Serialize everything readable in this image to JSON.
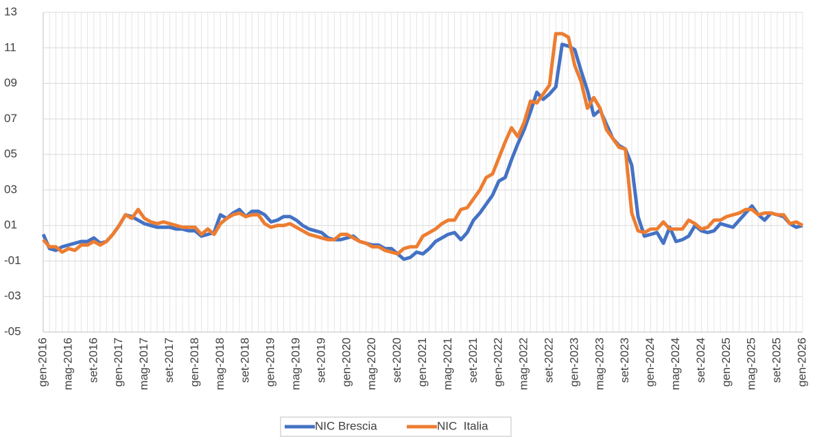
{
  "chart_data": {
    "type": "line",
    "categories": [
      "gen-2016",
      null,
      null,
      null,
      "mag-2016",
      null,
      null,
      null,
      "set-2016",
      null,
      null,
      null,
      "gen-2017",
      null,
      null,
      null,
      "mag-2017",
      null,
      null,
      null,
      "set-2017",
      null,
      null,
      null,
      "gen-2018",
      null,
      null,
      null,
      "mag-2018",
      null,
      null,
      null,
      "set-2018",
      null,
      null,
      null,
      "gen-2019",
      null,
      null,
      null,
      "mag-2019",
      null,
      null,
      null,
      "set-2019",
      null,
      null,
      null,
      "gen-2020",
      null,
      null,
      null,
      "mag-2020",
      null,
      null,
      null,
      "set-2020",
      null,
      null,
      null,
      "gen-2021",
      null,
      null,
      null,
      "mag-2021",
      null,
      null,
      null,
      "set-2021",
      null,
      null,
      null,
      "gen-2022",
      null,
      null,
      null,
      "mag-2022",
      null,
      null,
      null,
      "set-2022",
      null,
      null,
      null,
      "gen-2023",
      null,
      null,
      null,
      "mag-2023",
      null,
      null,
      null,
      "set-2023",
      null,
      null,
      null,
      "gen-2024",
      null,
      null,
      null,
      "mag-2024",
      null,
      null,
      null,
      "set-2024",
      null,
      null,
      null,
      "gen-2025",
      null,
      null,
      null,
      "mag-2025",
      null,
      null,
      null,
      "set-2025",
      null,
      null,
      null,
      "gen-2026"
    ],
    "series": [
      {
        "name": "NIC Brescia",
        "color": "#4472c4",
        "values": [
          0.5,
          -0.3,
          -0.4,
          -0.2,
          -0.1,
          0,
          0.1,
          0.1,
          0.3,
          0,
          0.1,
          0.5,
          1.0,
          1.6,
          1.5,
          1.3,
          1.1,
          1.0,
          0.9,
          0.9,
          0.9,
          0.8,
          0.8,
          0.7,
          0.7,
          0.4,
          0.5,
          0.6,
          1.6,
          1.4,
          1.7,
          1.9,
          1.5,
          1.8,
          1.8,
          1.6,
          1.2,
          1.3,
          1.5,
          1.5,
          1.3,
          1.0,
          0.8,
          0.7,
          0.6,
          0.3,
          0.2,
          0.2,
          0.3,
          0.4,
          0.1,
          0.0,
          -0.1,
          -0.1,
          -0.3,
          -0.3,
          -0.6,
          -0.9,
          -0.8,
          -0.5,
          -0.6,
          -0.3,
          0.1,
          0.3,
          0.5,
          0.6,
          0.2,
          0.6,
          1.3,
          1.7,
          2.2,
          2.7,
          3.5,
          3.7,
          4.7,
          5.6,
          6.4,
          7.4,
          8.5,
          8.1,
          8.4,
          8.8,
          11.2,
          11.1,
          10.9,
          9.7,
          8.6,
          7.2,
          7.5,
          6.7,
          5.9,
          5.5,
          5.3,
          4.4,
          1.5,
          0.4,
          0.5,
          0.6,
          0.0,
          0.9,
          0.1,
          0.2,
          0.4,
          1.0,
          0.7,
          0.6,
          0.7,
          1.1,
          1.0,
          0.9,
          1.3,
          1.7,
          2.1,
          1.6,
          1.3,
          1.7,
          1.6,
          1.5,
          1.1,
          0.9,
          1.0
        ]
      },
      {
        "name": "NIC  Italia",
        "color": "#ed7d31",
        "values": [
          0.2,
          -0.2,
          -0.2,
          -0.5,
          -0.3,
          -0.4,
          -0.1,
          -0.1,
          0.1,
          -0.1,
          0.1,
          0.5,
          1.0,
          1.6,
          1.4,
          1.9,
          1.4,
          1.2,
          1.1,
          1.2,
          1.1,
          1.0,
          0.9,
          0.9,
          0.9,
          0.5,
          0.8,
          0.5,
          1.1,
          1.4,
          1.6,
          1.7,
          1.5,
          1.6,
          1.6,
          1.1,
          0.9,
          1.0,
          1.0,
          1.1,
          0.9,
          0.7,
          0.5,
          0.4,
          0.3,
          0.2,
          0.2,
          0.5,
          0.5,
          0.3,
          0.1,
          0.0,
          -0.2,
          -0.2,
          -0.4,
          -0.5,
          -0.6,
          -0.3,
          -0.2,
          -0.2,
          0.4,
          0.6,
          0.8,
          1.1,
          1.3,
          1.3,
          1.9,
          2.0,
          2.5,
          3.0,
          3.7,
          3.9,
          4.8,
          5.7,
          6.5,
          6.0,
          6.8,
          8.0,
          7.9,
          8.4,
          8.9,
          11.8,
          11.8,
          11.6,
          10.0,
          9.1,
          7.6,
          8.2,
          7.6,
          6.4,
          5.9,
          5.4,
          5.3,
          1.7,
          0.7,
          0.6,
          0.8,
          0.8,
          1.2,
          0.8,
          0.8,
          0.8,
          1.3,
          1.1,
          0.8,
          0.9,
          1.3,
          1.3,
          1.5,
          1.6,
          1.7,
          1.9,
          1.9,
          1.6,
          1.7,
          1.7,
          1.6,
          1.6,
          1.1,
          1.2,
          1.0
        ]
      }
    ],
    "ylim": [
      -5,
      13
    ],
    "yticks": [
      {
        "value": -5,
        "label": "-05"
      },
      {
        "value": -3,
        "label": "-03"
      },
      {
        "value": -1,
        "label": "-01"
      },
      {
        "value": 1,
        "label": "01"
      },
      {
        "value": 3,
        "label": "03"
      },
      {
        "value": 5,
        "label": "05"
      },
      {
        "value": 7,
        "label": "07"
      },
      {
        "value": 9,
        "label": "09"
      },
      11,
      13
    ],
    "grid": true,
    "legend": "bottom"
  }
}
